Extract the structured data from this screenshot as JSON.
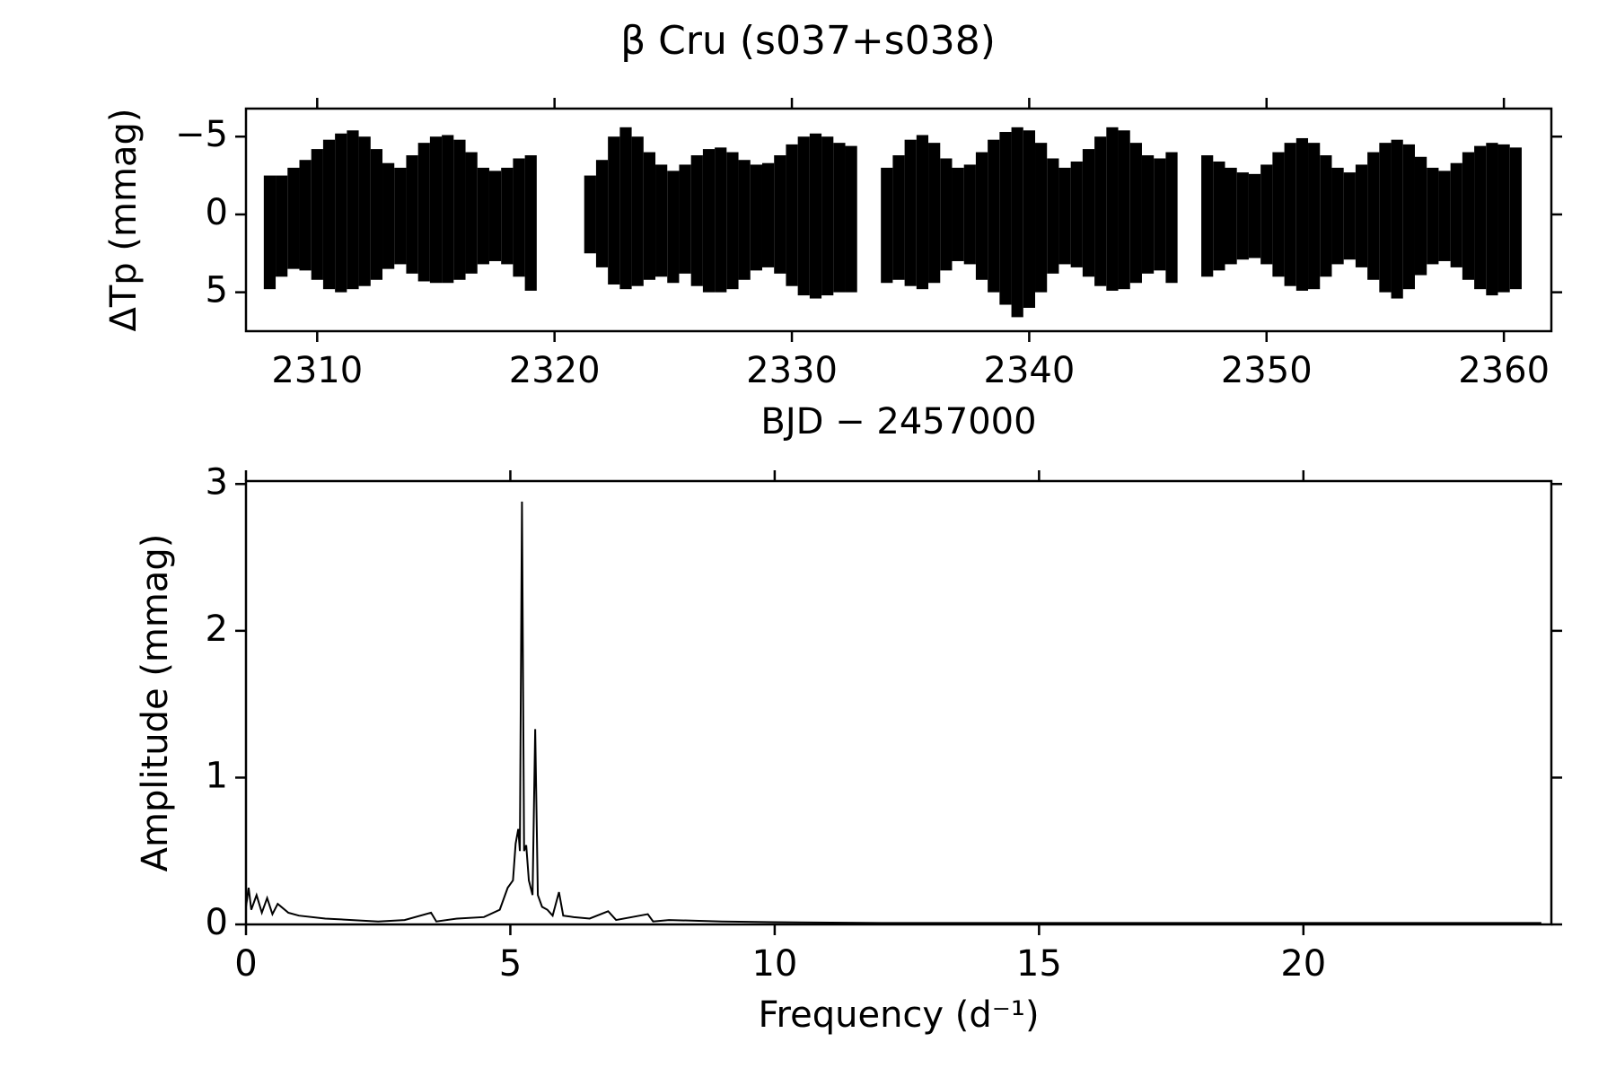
{
  "chart_data": [
    {
      "type": "range",
      "title": "β Cru  (s037+s038)",
      "xlabel": "BJD − 2457000",
      "ylabel": "ΔTp (mmag)",
      "color": "#000000",
      "x": [
        2308,
        2308.5,
        2309,
        2309.5,
        2310,
        2310.5,
        2311,
        2311.5,
        2312,
        2312.5,
        2313,
        2313.5,
        2314,
        2314.5,
        2315,
        2315.5,
        2316,
        2316.5,
        2317,
        2317.5,
        2318,
        2318.5,
        2319,
        2321.5,
        2322,
        2322.5,
        2323,
        2323.5,
        2324,
        2324.5,
        2325,
        2325.5,
        2326,
        2326.5,
        2327,
        2327.5,
        2328,
        2328.5,
        2329,
        2329.5,
        2330,
        2330.5,
        2331,
        2331.5,
        2332,
        2332.5,
        2334,
        2334.5,
        2335,
        2335.5,
        2336,
        2336.5,
        2337,
        2337.5,
        2338,
        2338.5,
        2339,
        2339.5,
        2340,
        2340.5,
        2341,
        2341.5,
        2342,
        2342.5,
        2343,
        2343.5,
        2344,
        2344.5,
        2345,
        2345.5,
        2346,
        2347.5,
        2348,
        2348.5,
        2349,
        2349.5,
        2350,
        2350.5,
        2351,
        2351.5,
        2352,
        2352.5,
        2353,
        2353.5,
        2354,
        2354.5,
        2355,
        2355.5,
        2356,
        2356.5,
        2357,
        2357.5,
        2358,
        2358.5,
        2359,
        2359.5,
        2360,
        2360.5
      ],
      "low": [
        -2.5,
        -2.5,
        -3,
        -3.5,
        -4.2,
        -4.8,
        -5.2,
        -5.4,
        -5,
        -4.2,
        -3.3,
        -3,
        -3.8,
        -4.6,
        -5,
        -5.1,
        -4.8,
        -4,
        -3,
        -2.8,
        -3,
        -3.6,
        -3.8,
        -2.5,
        -3.5,
        -5,
        -5.6,
        -5,
        -4,
        -3.2,
        -2.8,
        -3.2,
        -3.8,
        -4.2,
        -4.3,
        -4,
        -3.5,
        -3.2,
        -3.3,
        -3.8,
        -4.5,
        -5,
        -5.2,
        -5,
        -4.6,
        -4.4,
        -3,
        -3.8,
        -4.8,
        -5.1,
        -4.6,
        -3.6,
        -3,
        -3.2,
        -4,
        -4.8,
        -5.3,
        -5.6,
        -5.4,
        -4.6,
        -3.6,
        -3,
        -3.4,
        -4.2,
        -5,
        -5.6,
        -5.4,
        -4.6,
        -3.8,
        -3.6,
        -4,
        -3.8,
        -3.4,
        -3,
        -2.7,
        -2.6,
        -3.2,
        -4,
        -4.6,
        -4.9,
        -4.6,
        -3.8,
        -3,
        -2.7,
        -3.2,
        -4,
        -4.6,
        -4.8,
        -4.5,
        -3.7,
        -3,
        -2.8,
        -3.3,
        -4,
        -4.4,
        -4.6,
        -4.5,
        -4.3
      ],
      "high": [
        4.8,
        4,
        3.5,
        3.6,
        4.2,
        4.8,
        5,
        4.8,
        4.6,
        4.2,
        3.5,
        3.2,
        3.8,
        4.3,
        4.4,
        4.4,
        4.2,
        3.8,
        3.2,
        3,
        3.2,
        4,
        4.9,
        2.5,
        3.4,
        4.5,
        4.8,
        4.6,
        4.2,
        4,
        4.4,
        3.8,
        4.6,
        5,
        5,
        4.8,
        4.2,
        3.6,
        3.4,
        3.8,
        4.6,
        5.2,
        5.4,
        5.2,
        5,
        5,
        4.4,
        4.2,
        4.6,
        4.8,
        4.4,
        3.6,
        3,
        3.2,
        4.2,
        5,
        5.8,
        6.6,
        6,
        5,
        3.8,
        3.2,
        3.4,
        4,
        4.6,
        4.9,
        4.8,
        4.4,
        3.8,
        3.6,
        4.4,
        4,
        3.6,
        3.2,
        2.9,
        2.8,
        3.2,
        4,
        4.6,
        4.9,
        4.8,
        4,
        3.2,
        2.9,
        3.4,
        4.2,
        5,
        5.4,
        4.8,
        3.9,
        3.2,
        3,
        3.4,
        4.2,
        4.8,
        5.2,
        5,
        4.8
      ],
      "xlim": [
        2307,
        2362
      ],
      "xticks": [
        2310,
        2320,
        2330,
        2340,
        2350,
        2360
      ],
      "ylim": [
        7.5,
        -6.8
      ],
      "yticks": [
        {
          "value": -5,
          "label": "−5"
        },
        0,
        5
      ]
    },
    {
      "type": "line",
      "xlabel": "Frequency (d⁻¹)",
      "ylabel": "Amplitude (mmag)",
      "color": "#000000",
      "x": [
        0,
        0.05,
        0.1,
        0.2,
        0.3,
        0.4,
        0.5,
        0.6,
        0.8,
        1.0,
        1.5,
        2,
        2.5,
        3,
        3.5,
        3.6,
        4,
        4.5,
        4.8,
        4.95,
        5.05,
        5.1,
        5.15,
        5.18,
        5.22,
        5.26,
        5.3,
        5.35,
        5.42,
        5.47,
        5.52,
        5.6,
        5.7,
        5.8,
        5.92,
        6.0,
        6.2,
        6.5,
        6.85,
        7.0,
        7.6,
        7.7,
        8,
        9,
        10,
        12,
        15,
        18,
        21,
        24.5
      ],
      "values": [
        0.12,
        0.25,
        0.1,
        0.2,
        0.08,
        0.18,
        0.07,
        0.14,
        0.08,
        0.06,
        0.04,
        0.03,
        0.02,
        0.03,
        0.08,
        0.02,
        0.04,
        0.05,
        0.1,
        0.25,
        0.3,
        0.55,
        0.65,
        0.5,
        2.88,
        0.5,
        0.54,
        0.3,
        0.2,
        1.33,
        0.2,
        0.12,
        0.1,
        0.06,
        0.22,
        0.06,
        0.05,
        0.04,
        0.09,
        0.03,
        0.07,
        0.02,
        0.03,
        0.02,
        0.015,
        0.01,
        0.01,
        0.01,
        0.01,
        0.01
      ],
      "xlim": [
        0,
        24.69
      ],
      "xticks": [
        0,
        5,
        10,
        15,
        20
      ],
      "ylim": [
        0,
        3.02
      ],
      "yticks": [
        0,
        1,
        2,
        3
      ]
    }
  ]
}
